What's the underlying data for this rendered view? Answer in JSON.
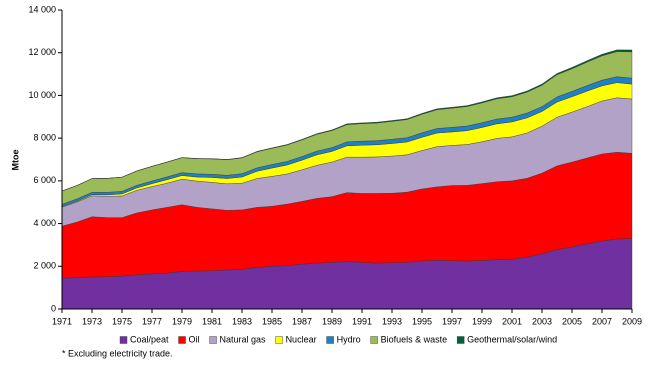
{
  "chart_data": {
    "type": "stacked_area",
    "y_label": "Mtoe",
    "footnote": "* Excluding electricity trade.",
    "x": [
      1971,
      1972,
      1973,
      1974,
      1975,
      1976,
      1977,
      1978,
      1979,
      1980,
      1981,
      1982,
      1983,
      1984,
      1985,
      1986,
      1987,
      1988,
      1989,
      1990,
      1991,
      1992,
      1993,
      1994,
      1995,
      1996,
      1997,
      1998,
      1999,
      2000,
      2001,
      2002,
      2003,
      2004,
      2005,
      2006,
      2007,
      2008,
      2009
    ],
    "xlim": [
      1971,
      2009
    ],
    "xticks": [
      1971,
      1973,
      1975,
      1977,
      1979,
      1981,
      1983,
      1985,
      1987,
      1989,
      1991,
      1993,
      1995,
      1997,
      1999,
      2001,
      2003,
      2005,
      2007,
      2009
    ],
    "ylim": [
      0,
      14000
    ],
    "yticks": [
      0,
      {
        "value": 2000,
        "label": "2 000"
      },
      {
        "value": 4000,
        "label": "4 000"
      },
      {
        "value": 6000,
        "label": "6 000"
      },
      {
        "value": 8000,
        "label": "8 000"
      },
      {
        "value": 10000,
        "label": "10 000"
      },
      {
        "value": 12000,
        "label": "12 000"
      },
      {
        "value": 14000,
        "label": "14 000"
      }
    ],
    "grid": false,
    "series": [
      {
        "name": "Coal/peat",
        "color": "#7030a0",
        "values": [
          1440,
          1470,
          1500,
          1510,
          1540,
          1600,
          1640,
          1680,
          1760,
          1780,
          1790,
          1820,
          1860,
          1940,
          2000,
          2030,
          2100,
          2150,
          2180,
          2220,
          2180,
          2150,
          2170,
          2180,
          2250,
          2280,
          2260,
          2250,
          2270,
          2310,
          2330,
          2420,
          2580,
          2780,
          2900,
          3050,
          3180,
          3280,
          3300
        ]
      },
      {
        "name": "Oil",
        "color": "#ff0000",
        "values": [
          2440,
          2600,
          2820,
          2770,
          2740,
          2900,
          3000,
          3080,
          3120,
          2980,
          2900,
          2800,
          2780,
          2820,
          2810,
          2880,
          2940,
          3030,
          3080,
          3230,
          3230,
          3260,
          3250,
          3290,
          3370,
          3440,
          3520,
          3540,
          3600,
          3650,
          3670,
          3700,
          3780,
          3920,
          3980,
          4020,
          4080,
          4060,
          3990
        ]
      },
      {
        "name": "Natural gas",
        "color": "#b3a2c7",
        "values": [
          890,
          940,
          980,
          1000,
          1010,
          1060,
          1090,
          1130,
          1200,
          1230,
          1240,
          1240,
          1250,
          1350,
          1400,
          1410,
          1480,
          1550,
          1620,
          1660,
          1700,
          1710,
          1740,
          1750,
          1800,
          1880,
          1880,
          1910,
          1960,
          2030,
          2060,
          2120,
          2200,
          2280,
          2340,
          2400,
          2480,
          2550,
          2540
        ]
      },
      {
        "name": "Nuclear",
        "color": "#ffff00",
        "values": [
          29,
          38,
          53,
          65,
          100,
          115,
          140,
          165,
          170,
          190,
          230,
          250,
          290,
          340,
          390,
          420,
          450,
          490,
          500,
          530,
          560,
          570,
          590,
          600,
          620,
          640,
          630,
          650,
          670,
          680,
          700,
          710,
          690,
          710,
          720,
          730,
          710,
          710,
          700
        ]
      },
      {
        "name": "Hydro",
        "color": "#1f7fc7",
        "values": [
          104,
          108,
          110,
          118,
          120,
          120,
          125,
          130,
          135,
          147,
          148,
          150,
          155,
          160,
          165,
          168,
          170,
          175,
          175,
          185,
          190,
          190,
          198,
          200,
          210,
          212,
          215,
          220,
          222,
          225,
          220,
          225,
          228,
          240,
          250,
          260,
          265,
          275,
          280
        ]
      },
      {
        "name": "Biofuels & waste",
        "color": "#9bbb59",
        "values": [
          620,
          625,
          640,
          650,
          660,
          670,
          680,
          690,
          700,
          710,
          720,
          730,
          740,
          750,
          760,
          770,
          780,
          790,
          800,
          810,
          820,
          830,
          840,
          850,
          870,
          880,
          900,
          910,
          930,
          950,
          960,
          980,
          1000,
          1040,
          1060,
          1100,
          1140,
          1180,
          1230
        ]
      },
      {
        "name": "Geothermal/solar/wind",
        "color": "#00613a",
        "values": [
          6,
          6,
          6,
          7,
          7,
          8,
          9,
          9,
          10,
          12,
          13,
          14,
          16,
          18,
          20,
          22,
          25,
          27,
          30,
          36,
          37,
          38,
          39,
          40,
          41,
          42,
          43,
          44,
          47,
          48,
          50,
          52,
          55,
          58,
          62,
          66,
          72,
          80,
          90
        ]
      }
    ]
  }
}
